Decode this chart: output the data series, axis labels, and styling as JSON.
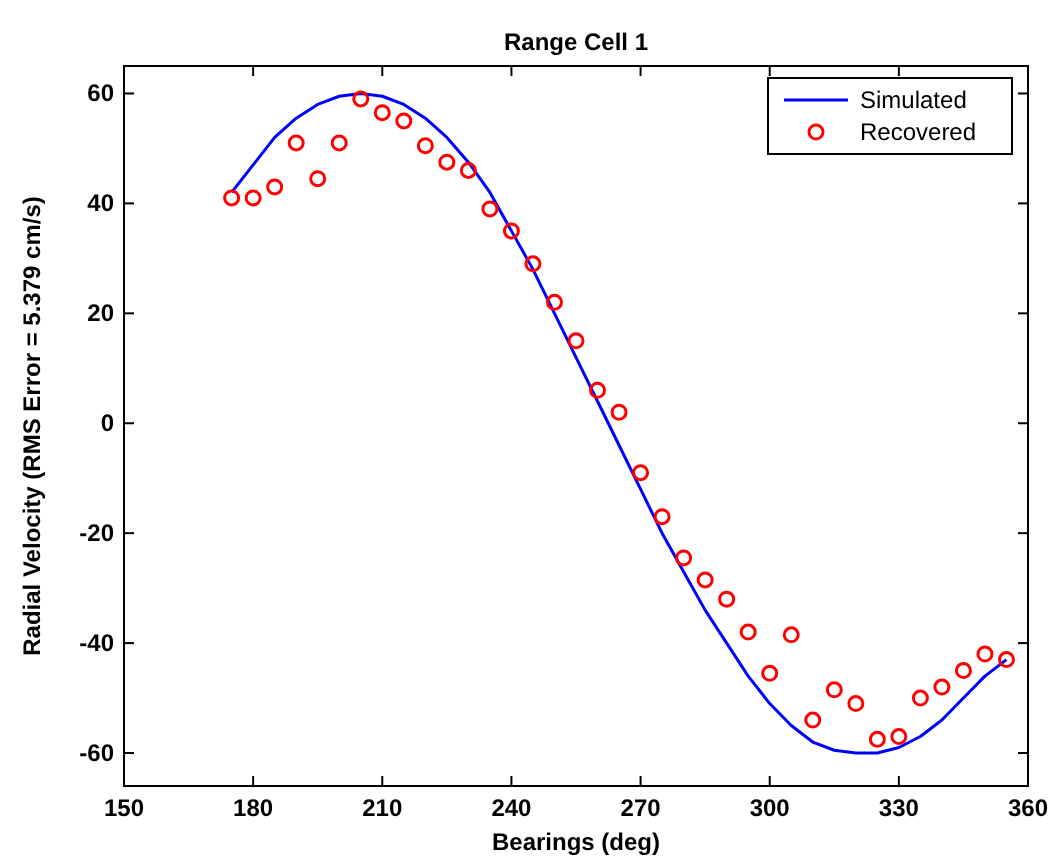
{
  "chart_data": {
    "type": "line",
    "title": "Range Cell 1",
    "xlabel": "Bearings (deg)",
    "ylabel": "Radial Velocity  (RMS Error = 5.379 cm/s)",
    "xlim": [
      150,
      360
    ],
    "xticks": [
      150,
      180,
      210,
      240,
      270,
      300,
      330,
      360
    ],
    "ylim": [
      -66,
      65
    ],
    "yticks": [
      -60,
      -40,
      -20,
      0,
      20,
      40,
      60
    ],
    "grid": false,
    "legend": "top right",
    "series": [
      {
        "name": "Simulated",
        "color": "#0000ff",
        "marker": "none",
        "line_style": "solid",
        "x": [
          175,
          180,
          185,
          190,
          195,
          200,
          205,
          210,
          215,
          220,
          225,
          230,
          235,
          240,
          245,
          250,
          255,
          260,
          265,
          270,
          275,
          280,
          285,
          290,
          295,
          300,
          305,
          310,
          315,
          320,
          325,
          330,
          335,
          340,
          345,
          350,
          355
        ],
        "values": [
          42,
          47,
          52,
          55.5,
          58,
          59.5,
          60,
          59.5,
          58,
          55.5,
          52,
          47.5,
          42,
          35,
          28,
          20,
          12,
          4,
          -4,
          -12,
          -20,
          -27,
          -34,
          -40,
          -46,
          -51,
          -55,
          -58,
          -59.5,
          -60,
          -60,
          -59,
          -57,
          -54,
          -50,
          -46,
          -43
        ]
      },
      {
        "name": "Recovered",
        "type": "scatter",
        "color": "#ff0000",
        "marker": "circle",
        "x": [
          175,
          180,
          185,
          190,
          195,
          200,
          205,
          210,
          215,
          220,
          225,
          230,
          235,
          240,
          245,
          250,
          255,
          260,
          265,
          270,
          275,
          280,
          285,
          290,
          295,
          300,
          305,
          310,
          315,
          320,
          325,
          330,
          335,
          340,
          345,
          350,
          355
        ],
        "values": [
          41,
          41,
          43,
          51,
          44.5,
          51,
          59,
          56.5,
          55,
          50.5,
          47.5,
          46,
          39,
          35,
          29,
          22,
          15,
          6,
          2,
          -9,
          -17,
          -24.5,
          -28.5,
          -32,
          -38,
          -45.5,
          -38.5,
          -54,
          -48.5,
          -51,
          -57.5,
          -57,
          -50,
          -48,
          -45,
          -42,
          -43
        ]
      }
    ]
  }
}
